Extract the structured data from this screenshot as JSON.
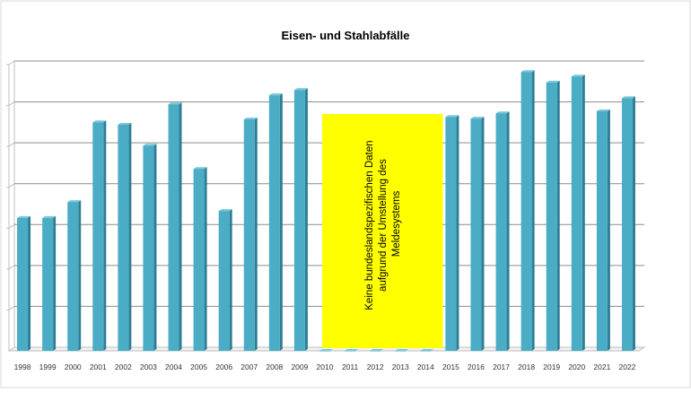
{
  "chart_data": {
    "type": "bar",
    "title": "Eisen- und Stahlabfälle",
    "xlabel": "",
    "ylabel": "",
    "categories": [
      "1998",
      "1999",
      "2000",
      "2001",
      "2002",
      "2003",
      "2004",
      "2005",
      "2006",
      "2007",
      "2008",
      "2009",
      "2010",
      "2011",
      "2012",
      "2013",
      "2014",
      "2015",
      "2016",
      "2017",
      "2018",
      "2019",
      "2020",
      "2021",
      "2022"
    ],
    "values": [
      3.25,
      3.25,
      3.64,
      5.59,
      5.53,
      5.02,
      6.03,
      4.45,
      3.42,
      5.66,
      6.25,
      6.38,
      0,
      0,
      0,
      0,
      0,
      5.72,
      5.68,
      5.81,
      6.82,
      6.56,
      6.71,
      5.86,
      6.18
    ],
    "ylim": [
      0,
      7
    ],
    "grid": true,
    "y_tick_labels_visible": false,
    "bar_color": "#4BACC6",
    "annotation": {
      "text": "Keine bundeslandspezifischen Daten aufgrund der Umstellung des Meldesystems",
      "lines": [
        "Keine bundeslandspezifischen Daten",
        "aufgrund der Umstellung des",
        "Meldesystems"
      ],
      "from": "2010",
      "to": "2014",
      "color": "#FFFF00"
    }
  }
}
